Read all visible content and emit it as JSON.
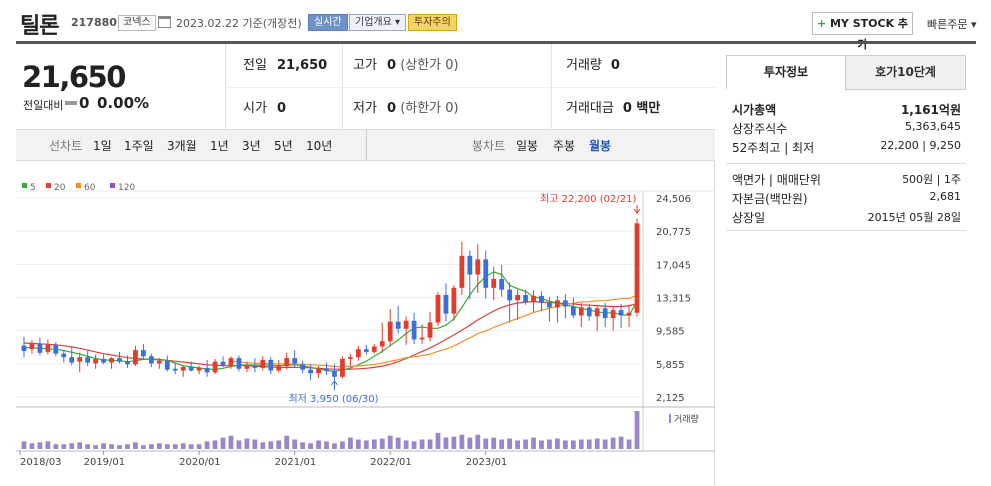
{
  "header": {
    "stock_name": "틸론",
    "stock_code": "217880",
    "market": "코넥스",
    "date_text": "2023.02.22  기준(개장전)",
    "tag_realtime": "실시간",
    "tag_company": "기업개요 ▾",
    "tag_warning": "투자주의",
    "mystock_plus": "+",
    "mystock_label": " MY STOCK 추가",
    "fast_order": "빠른주문 ▾"
  },
  "price": {
    "current": "21,650",
    "change_label": "전일대비",
    "change_value": "0",
    "change_pct": "0.00%"
  },
  "quote": {
    "prev_close_label": "전일",
    "prev_close": "21,650",
    "high_label": "고가",
    "high": "0",
    "high_limit": "(상한가 0)",
    "volume_label": "거래량",
    "volume": "0",
    "open_label": "시가",
    "open": "0",
    "low_label": "저가",
    "low": "0",
    "low_limit": "(하한가 0)",
    "amount_label": "거래대금",
    "amount": "0 백만"
  },
  "period_bar": {
    "line_label": "선차트",
    "periods": [
      "1일",
      "1주일",
      "3개월",
      "1년",
      "3년",
      "5년",
      "10년"
    ],
    "candle_label": "봉차트",
    "candles": [
      "일봉",
      "주봉",
      "월봉"
    ],
    "active_candle": "월봉"
  },
  "right_panel": {
    "tab_invest": "투자정보",
    "tab_orderbook": "호가10단계",
    "market_cap_label": "시가총액",
    "market_cap": "1,161억원",
    "shares_label": "상장주식수",
    "shares": "5,363,645",
    "week52_label": "52주최고 | 최저",
    "week52": "22,200 | 9,250",
    "par_label": "액면가 | 매매단위",
    "par": "500원 | 1주",
    "capital_label": "자본금(백만원)",
    "capital": "2,681",
    "listing_label": "상장일",
    "listing": "2015년 05월 28일"
  },
  "colors": {
    "up": "#e23c2f",
    "down": "#3d6fd8",
    "ma5": "#3aaa3a",
    "ma20": "#d9413d",
    "ma60": "#ef8f2a",
    "ma120": "#8a55c9",
    "volume": "#9a86c8"
  },
  "chart_data": {
    "type": "candlestick",
    "interval": "monthly",
    "legend": [
      "5",
      "20",
      "60",
      "120"
    ],
    "y_ticks": [
      "24,506",
      "20,775",
      "17,045",
      "13,315",
      "9,585",
      "5,855",
      "2,125"
    ],
    "ylim": [
      2125,
      24506
    ],
    "x_ticks": [
      "2018/03",
      "2019/01",
      "2020/01",
      "2021/01",
      "2022/01",
      "2023/01"
    ],
    "high_annotation": "최고 22,200 (02/21)",
    "low_annotation": "최저 3,950 (06/30)",
    "volume_label": "거래량",
    "candles": [
      {
        "o": 7900,
        "h": 8900,
        "l": 6600,
        "c": 7300
      },
      {
        "o": 7500,
        "h": 8500,
        "l": 7000,
        "c": 8100
      },
      {
        "o": 8100,
        "h": 8800,
        "l": 6800,
        "c": 7100
      },
      {
        "o": 7200,
        "h": 8600,
        "l": 6900,
        "c": 8000
      },
      {
        "o": 8000,
        "h": 8300,
        "l": 6700,
        "c": 7000
      },
      {
        "o": 7000,
        "h": 7400,
        "l": 6000,
        "c": 6600
      },
      {
        "o": 6600,
        "h": 7700,
        "l": 5700,
        "c": 6000
      },
      {
        "o": 6100,
        "h": 7100,
        "l": 4900,
        "c": 6600
      },
      {
        "o": 6600,
        "h": 7300,
        "l": 5600,
        "c": 6000
      },
      {
        "o": 5900,
        "h": 6900,
        "l": 5300,
        "c": 6400
      },
      {
        "o": 6400,
        "h": 6900,
        "l": 5800,
        "c": 6000
      },
      {
        "o": 6000,
        "h": 6600,
        "l": 5300,
        "c": 6500
      },
      {
        "o": 6500,
        "h": 7200,
        "l": 5900,
        "c": 6100
      },
      {
        "o": 6100,
        "h": 6800,
        "l": 5400,
        "c": 5800
      },
      {
        "o": 5800,
        "h": 7900,
        "l": 5600,
        "c": 7400
      },
      {
        "o": 7400,
        "h": 8100,
        "l": 6400,
        "c": 6700
      },
      {
        "o": 6700,
        "h": 7000,
        "l": 5500,
        "c": 5900
      },
      {
        "o": 5900,
        "h": 6500,
        "l": 5300,
        "c": 6200
      },
      {
        "o": 6200,
        "h": 6800,
        "l": 5000,
        "c": 5200
      },
      {
        "o": 5300,
        "h": 5900,
        "l": 4700,
        "c": 5100
      },
      {
        "o": 5100,
        "h": 5700,
        "l": 4400,
        "c": 5500
      },
      {
        "o": 5500,
        "h": 6100,
        "l": 5000,
        "c": 5100
      },
      {
        "o": 5100,
        "h": 5600,
        "l": 4700,
        "c": 5400
      },
      {
        "o": 5400,
        "h": 6300,
        "l": 4400,
        "c": 4900
      },
      {
        "o": 4900,
        "h": 6400,
        "l": 4700,
        "c": 6100
      },
      {
        "o": 6100,
        "h": 6700,
        "l": 5500,
        "c": 5700
      },
      {
        "o": 5700,
        "h": 6700,
        "l": 5300,
        "c": 6500
      },
      {
        "o": 6500,
        "h": 6800,
        "l": 5000,
        "c": 5300
      },
      {
        "o": 5300,
        "h": 6100,
        "l": 4900,
        "c": 5600
      },
      {
        "o": 5600,
        "h": 6500,
        "l": 4900,
        "c": 5400
      },
      {
        "o": 5400,
        "h": 6700,
        "l": 5100,
        "c": 6300
      },
      {
        "o": 6300,
        "h": 6600,
        "l": 4700,
        "c": 5100
      },
      {
        "o": 5100,
        "h": 6300,
        "l": 4900,
        "c": 5600
      },
      {
        "o": 5600,
        "h": 7100,
        "l": 5200,
        "c": 6500
      },
      {
        "o": 6500,
        "h": 7400,
        "l": 5400,
        "c": 5900
      },
      {
        "o": 5800,
        "h": 6200,
        "l": 4800,
        "c": 5200
      },
      {
        "o": 5200,
        "h": 5800,
        "l": 4000,
        "c": 4800
      },
      {
        "o": 4800,
        "h": 5600,
        "l": 4300,
        "c": 5300
      },
      {
        "o": 5300,
        "h": 6000,
        "l": 4600,
        "c": 5100
      },
      {
        "o": 5100,
        "h": 5800,
        "l": 3950,
        "c": 4400
      },
      {
        "o": 4400,
        "h": 6700,
        "l": 4200,
        "c": 6400
      },
      {
        "o": 6400,
        "h": 7000,
        "l": 5500,
        "c": 6600
      },
      {
        "o": 6600,
        "h": 7900,
        "l": 6200,
        "c": 7500
      },
      {
        "o": 7500,
        "h": 8000,
        "l": 6900,
        "c": 7200
      },
      {
        "o": 7200,
        "h": 8100,
        "l": 7000,
        "c": 7800
      },
      {
        "o": 7800,
        "h": 10500,
        "l": 7100,
        "c": 8400
      },
      {
        "o": 8400,
        "h": 12000,
        "l": 7800,
        "c": 10600
      },
      {
        "o": 10600,
        "h": 12400,
        "l": 9300,
        "c": 9800
      },
      {
        "o": 9800,
        "h": 11200,
        "l": 8000,
        "c": 10700
      },
      {
        "o": 10700,
        "h": 11600,
        "l": 8100,
        "c": 8600
      },
      {
        "o": 8600,
        "h": 10300,
        "l": 8100,
        "c": 8800
      },
      {
        "o": 8800,
        "h": 11700,
        "l": 8400,
        "c": 10500
      },
      {
        "o": 10500,
        "h": 13900,
        "l": 10100,
        "c": 13600
      },
      {
        "o": 13600,
        "h": 14900,
        "l": 10600,
        "c": 11500
      },
      {
        "o": 11500,
        "h": 14700,
        "l": 10700,
        "c": 14400
      },
      {
        "o": 14400,
        "h": 19600,
        "l": 13600,
        "c": 18000
      },
      {
        "o": 18000,
        "h": 18600,
        "l": 13100,
        "c": 15900
      },
      {
        "o": 15900,
        "h": 19300,
        "l": 13800,
        "c": 17600
      },
      {
        "o": 17600,
        "h": 18600,
        "l": 13200,
        "c": 14400
      },
      {
        "o": 14400,
        "h": 16800,
        "l": 13000,
        "c": 15400
      },
      {
        "o": 15400,
        "h": 17000,
        "l": 13400,
        "c": 14200
      },
      {
        "o": 14200,
        "h": 15000,
        "l": 10500,
        "c": 13000
      },
      {
        "o": 13000,
        "h": 14200,
        "l": 10800,
        "c": 13600
      },
      {
        "o": 13600,
        "h": 14200,
        "l": 12500,
        "c": 12800
      },
      {
        "o": 12800,
        "h": 14100,
        "l": 11700,
        "c": 13500
      },
      {
        "o": 13500,
        "h": 14000,
        "l": 11800,
        "c": 12700
      },
      {
        "o": 12700,
        "h": 13400,
        "l": 10600,
        "c": 12200
      },
      {
        "o": 12200,
        "h": 13500,
        "l": 10500,
        "c": 13000
      },
      {
        "o": 13000,
        "h": 13700,
        "l": 11000,
        "c": 12300
      },
      {
        "o": 12300,
        "h": 13300,
        "l": 11000,
        "c": 11300
      },
      {
        "o": 11300,
        "h": 12700,
        "l": 10000,
        "c": 12200
      },
      {
        "o": 12200,
        "h": 12600,
        "l": 10700,
        "c": 11200
      },
      {
        "o": 11200,
        "h": 12400,
        "l": 9500,
        "c": 12100
      },
      {
        "o": 12100,
        "h": 12700,
        "l": 10000,
        "c": 11000
      },
      {
        "o": 11000,
        "h": 12300,
        "l": 9600,
        "c": 11900
      },
      {
        "o": 11900,
        "h": 12600,
        "l": 9900,
        "c": 11300
      },
      {
        "o": 11300,
        "h": 12400,
        "l": 10000,
        "c": 11600
      },
      {
        "o": 11600,
        "h": 22200,
        "l": 11200,
        "c": 21650
      }
    ],
    "ma5": [
      7700,
      7650,
      7600,
      7550,
      7500,
      7350,
      7150,
      6950,
      6700,
      6450,
      6300,
      6250,
      6200,
      6100,
      6200,
      6350,
      6400,
      6350,
      6250,
      5950,
      5650,
      5500,
      5400,
      5250,
      5250,
      5350,
      5550,
      5700,
      5750,
      5700,
      5750,
      5700,
      5650,
      5700,
      5750,
      5650,
      5450,
      5300,
      5100,
      5000,
      5150,
      5400,
      5750,
      6150,
      6700,
      7250,
      7900,
      8550,
      9250,
      9900,
      10000,
      9850,
      9850,
      10200,
      10900,
      12200,
      13600,
      14800,
      15700,
      16200,
      15900,
      14700,
      14300,
      14000,
      13400,
      13200,
      12900,
      12700,
      12500,
      12300,
      12100,
      11900,
      11700,
      11600,
      11600,
      11400,
      11300,
      12900
    ],
    "ma20": [
      8200,
      8150,
      8100,
      8050,
      8000,
      7900,
      7750,
      7600,
      7400,
      7200,
      7000,
      6850,
      6700,
      6550,
      6450,
      6400,
      6350,
      6300,
      6250,
      6150,
      6050,
      5950,
      5850,
      5750,
      5700,
      5650,
      5650,
      5650,
      5650,
      5600,
      5550,
      5500,
      5450,
      5450,
      5450,
      5450,
      5400,
      5350,
      5300,
      5250,
      5250,
      5250,
      5300,
      5350,
      5450,
      5600,
      5800,
      6100,
      6450,
      6850,
      7250,
      7650,
      8100,
      8600,
      9100,
      9650,
      10200,
      10800,
      11300,
      11800,
      12200,
      12500,
      12700,
      12800,
      12850,
      12800,
      12750,
      12700,
      12650,
      12600,
      12500,
      12450,
      12400,
      12350,
      12300,
      12300,
      12400,
      12600
    ],
    "ma60": [
      null,
      null,
      null,
      null,
      null,
      null,
      null,
      null,
      null,
      null,
      null,
      null,
      null,
      null,
      null,
      null,
      null,
      null,
      null,
      null,
      null,
      null,
      null,
      null,
      null,
      null,
      null,
      null,
      null,
      null,
      null,
      null,
      null,
      null,
      null,
      null,
      null,
      null,
      null,
      null,
      null,
      null,
      null,
      null,
      null,
      null,
      null,
      null,
      null,
      null,
      null,
      null,
      null,
      null,
      null,
      null,
      null,
      null,
      null,
      null,
      null,
      null,
      null,
      null,
      null,
      null,
      null,
      null,
      null,
      null,
      null,
      null,
      null,
      null,
      null,
      null,
      null,
      null
    ],
    "volume": [
      8,
      6,
      7,
      8,
      5,
      5,
      6,
      7,
      5,
      4,
      6,
      5,
      4,
      5,
      7,
      4,
      5,
      6,
      5,
      5,
      6,
      5,
      5,
      8,
      9,
      12,
      14,
      9,
      11,
      10,
      7,
      8,
      9,
      14,
      10,
      7,
      6,
      9,
      8,
      6,
      8,
      12,
      10,
      9,
      10,
      11,
      14,
      12,
      9,
      8,
      10,
      10,
      17,
      12,
      13,
      15,
      12,
      15,
      11,
      12,
      10,
      11,
      9,
      10,
      12,
      9,
      10,
      11,
      9,
      9,
      10,
      10,
      11,
      10,
      12,
      13,
      10,
      40
    ]
  }
}
